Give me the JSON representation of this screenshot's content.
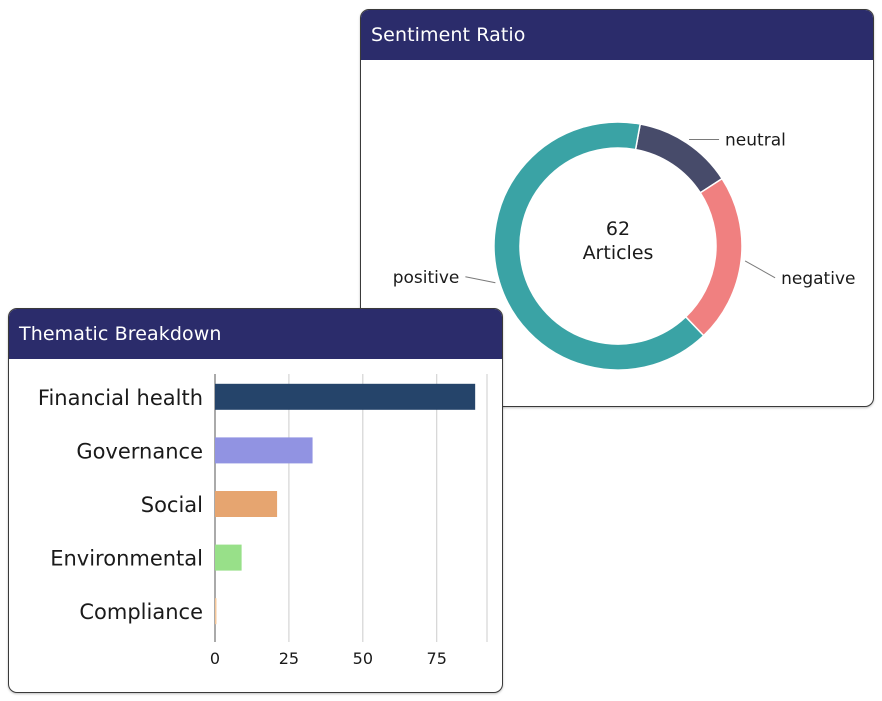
{
  "colors": {
    "header_bg": "#2b2c6b",
    "gridline": "#cccccc",
    "axis": "#333333",
    "text": "#1a1a1a"
  },
  "sentiment_card": {
    "title": "Sentiment Ratio",
    "center_value": "62",
    "center_label": "Articles"
  },
  "thematic_card": {
    "title": "Thematic Breakdown"
  },
  "chart_data": [
    {
      "type": "pie",
      "title": "Sentiment Ratio",
      "hole": true,
      "slices": [
        {
          "label": "positive",
          "value": 0.65,
          "color": "#3aa3a5"
        },
        {
          "label": "neutral",
          "value": 0.13,
          "color": "#474b6a"
        },
        {
          "label": "negative",
          "value": 0.22,
          "color": "#f08080"
        }
      ]
    },
    {
      "type": "bar",
      "orientation": "horizontal",
      "title": "Thematic Breakdown",
      "categories": [
        "Financial health",
        "Governance",
        "Social",
        "Environmental",
        "Compliance"
      ],
      "values": [
        88,
        33,
        21,
        9,
        0.5
      ],
      "colors": [
        "#25446a",
        "#9193e2",
        "#e6a570",
        "#98e089",
        "#f5c79a"
      ],
      "xticks": [
        "0",
        "25",
        "50",
        "75"
      ],
      "xtick_values": [
        0,
        25,
        50,
        75
      ],
      "xlim": [
        0,
        92
      ],
      "grid": true,
      "xlabel": "",
      "ylabel": ""
    }
  ]
}
